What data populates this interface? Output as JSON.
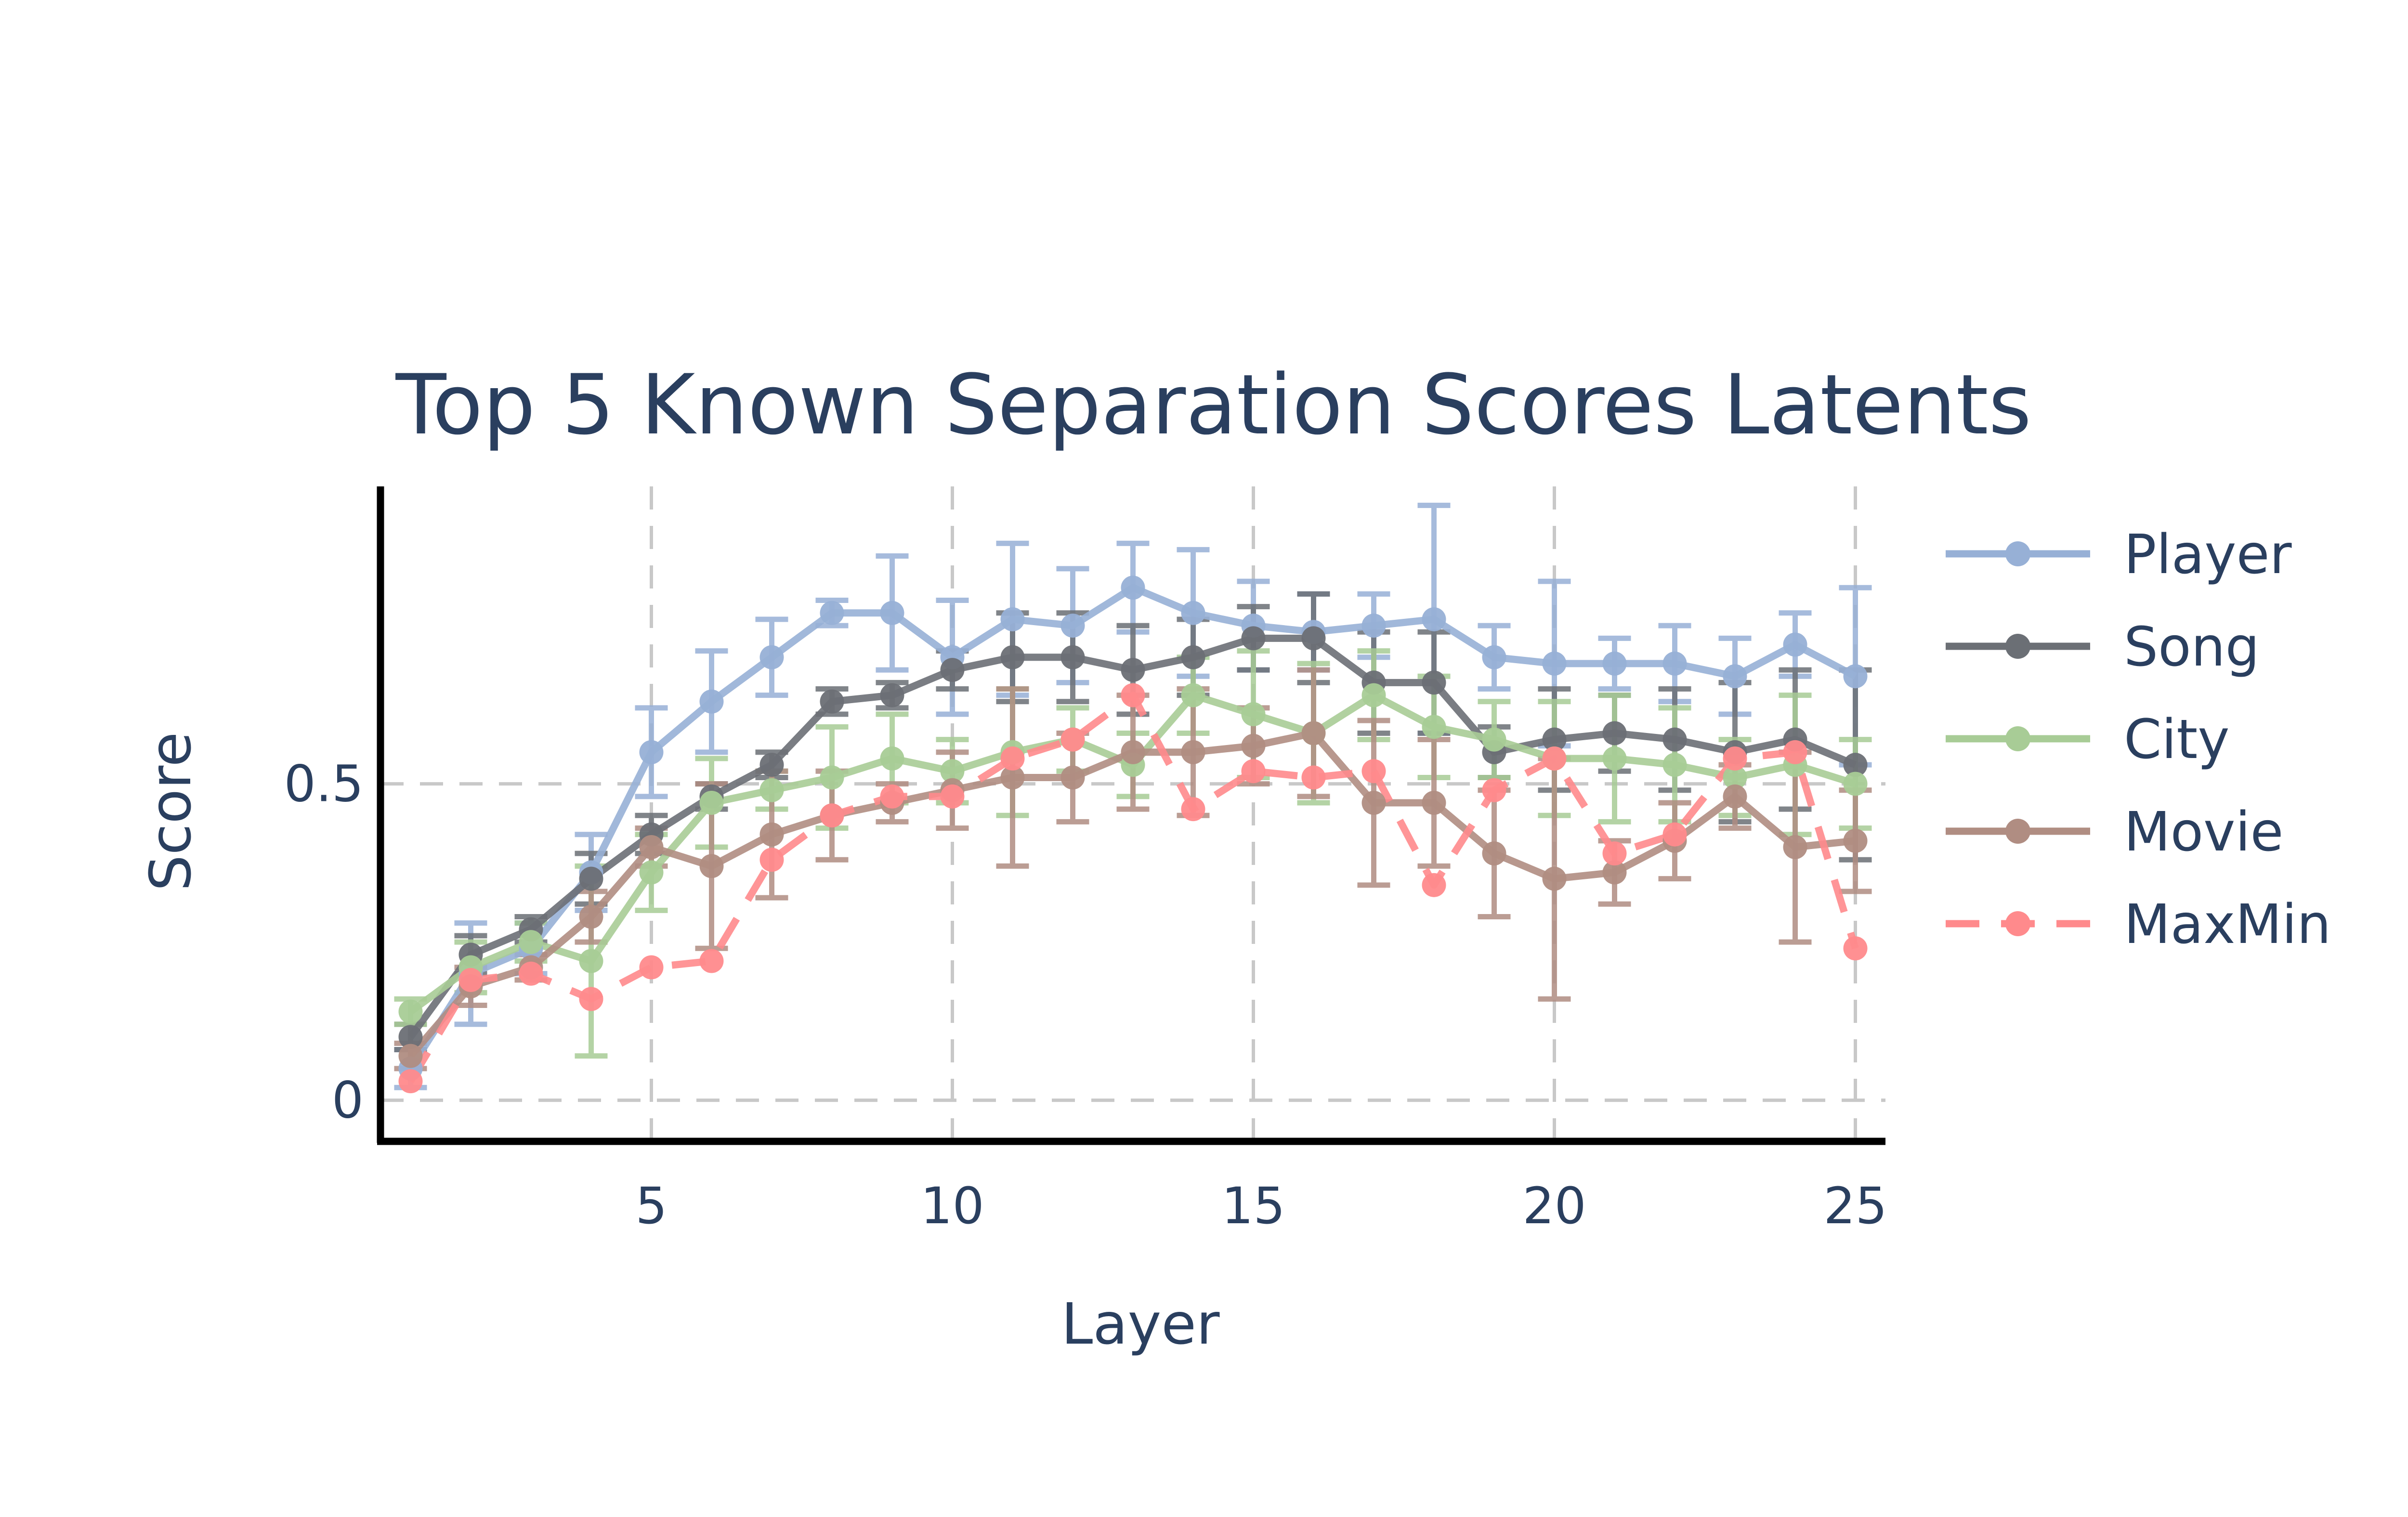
{
  "chart_data": {
    "type": "line",
    "title": "Top 5 Known Separation Scores Latents",
    "xlabel": "Layer",
    "ylabel": "Score",
    "xlim": [
      0.5,
      25.5
    ],
    "ylim": [
      -0.065,
      0.97
    ],
    "x_ticks": [
      5,
      10,
      15,
      20,
      25
    ],
    "x_tick_labels": [
      "5",
      "10",
      "15",
      "20",
      "25"
    ],
    "y_ticks": [
      0,
      0.5
    ],
    "y_tick_labels": [
      "0",
      "0.5"
    ],
    "grid": true,
    "legend_position": "right",
    "x": [
      1,
      2,
      3,
      4,
      5,
      6,
      7,
      8,
      9,
      10,
      11,
      12,
      13,
      14,
      15,
      16,
      17,
      18,
      19,
      20,
      21,
      22,
      23,
      24,
      25
    ],
    "series": [
      {
        "name": "Player",
        "color": "#97b0d6",
        "dash": "solid",
        "values": [
          0.05,
          0.2,
          0.24,
          0.36,
          0.55,
          0.63,
          0.7,
          0.77,
          0.77,
          0.7,
          0.76,
          0.75,
          0.81,
          0.77,
          0.75,
          0.74,
          0.75,
          0.76,
          0.7,
          0.69,
          0.69,
          0.69,
          0.67,
          0.72,
          0.67
        ],
        "errors": [
          0.03,
          0.08,
          0.04,
          0.06,
          0.07,
          0.08,
          0.06,
          0.02,
          0.09,
          0.09,
          0.12,
          0.09,
          0.07,
          0.1,
          0.07,
          0.06,
          0.05,
          0.18,
          0.05,
          0.13,
          0.04,
          0.06,
          0.06,
          0.05,
          0.14
        ]
      },
      {
        "name": "Song",
        "color": "#6b6f75",
        "dash": "solid",
        "values": [
          0.1,
          0.23,
          0.27,
          0.35,
          0.42,
          0.48,
          0.53,
          0.63,
          0.64,
          0.68,
          0.7,
          0.7,
          0.68,
          0.7,
          0.73,
          0.73,
          0.66,
          0.66,
          0.55,
          0.57,
          0.58,
          0.57,
          0.55,
          0.57,
          0.53
        ],
        "errors": [
          0.02,
          0.03,
          0.02,
          0.04,
          0.03,
          0.02,
          0.02,
          0.02,
          0.02,
          0.03,
          0.07,
          0.07,
          0.07,
          0.06,
          0.05,
          0.07,
          0.08,
          0.08,
          0.04,
          0.08,
          0.06,
          0.08,
          0.11,
          0.11,
          0.15
        ]
      },
      {
        "name": "City",
        "color": "#a8cc96",
        "dash": "solid",
        "values": [
          0.14,
          0.21,
          0.25,
          0.22,
          0.36,
          0.47,
          0.49,
          0.51,
          0.54,
          0.52,
          0.55,
          0.57,
          0.53,
          0.64,
          0.61,
          0.58,
          0.64,
          0.59,
          0.57,
          0.54,
          0.54,
          0.53,
          0.51,
          0.53,
          0.5
        ],
        "errors": [
          0.02,
          0.04,
          0.03,
          0.15,
          0.06,
          0.07,
          0.03,
          0.08,
          0.07,
          0.05,
          0.1,
          0.05,
          0.05,
          0.06,
          0.1,
          0.11,
          0.07,
          0.08,
          0.06,
          0.09,
          0.1,
          0.09,
          0.06,
          0.11,
          0.07
        ]
      },
      {
        "name": "Movie",
        "color": "#b08d82",
        "dash": "solid",
        "values": [
          0.07,
          0.18,
          0.21,
          0.29,
          0.4,
          0.37,
          0.42,
          0.45,
          0.47,
          0.49,
          0.51,
          0.51,
          0.55,
          0.55,
          0.56,
          0.58,
          0.47,
          0.47,
          0.39,
          0.35,
          0.36,
          0.41,
          0.48,
          0.4,
          0.41
        ],
        "errors": [
          0.02,
          0.03,
          0.02,
          0.04,
          0.03,
          0.13,
          0.1,
          0.07,
          0.03,
          0.06,
          0.14,
          0.07,
          0.09,
          0.1,
          0.06,
          0.1,
          0.13,
          0.1,
          0.1,
          0.19,
          0.05,
          0.06,
          0.05,
          0.15,
          0.08
        ]
      },
      {
        "name": "MaxMin",
        "color": "#ff8a8c",
        "dash": "dash",
        "values": [
          0.03,
          0.19,
          0.2,
          0.16,
          0.21,
          0.22,
          0.38,
          0.45,
          0.48,
          0.48,
          0.54,
          0.57,
          0.64,
          0.46,
          0.52,
          0.51,
          0.52,
          0.34,
          0.49,
          0.54,
          0.39,
          0.42,
          0.54,
          0.55,
          0.24
        ]
      }
    ]
  }
}
